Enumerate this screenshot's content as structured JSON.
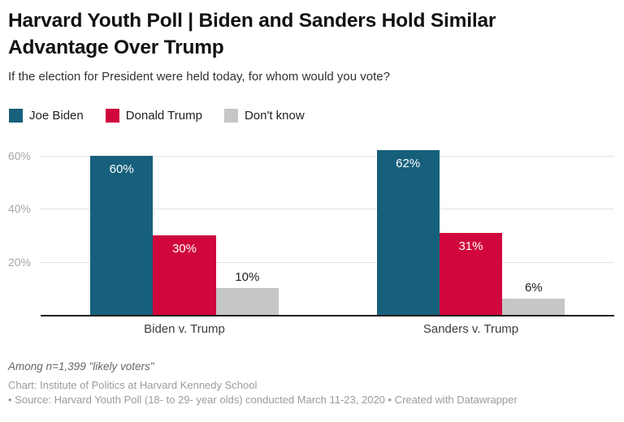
{
  "header": {
    "title": "Harvard Youth Poll | Biden and Sanders Hold Similar Advantage Over Trump",
    "subtitle": "If the election for President were held today, for whom would you vote?"
  },
  "chart_data": {
    "type": "bar",
    "categories": [
      "Biden v. Trump",
      "Sanders v. Trump"
    ],
    "series": [
      {
        "name": "Joe Biden",
        "color": "#17607c",
        "values": [
          60,
          62
        ]
      },
      {
        "name": "Donald Trump",
        "color": "#d0063d",
        "values": [
          30,
          31
        ]
      },
      {
        "name": "Don't know",
        "color": "#c6c6c6",
        "values": [
          10,
          6
        ]
      }
    ],
    "value_suffix": "%",
    "y_ticks": [
      20,
      40,
      60
    ],
    "ylim": [
      0,
      65
    ],
    "grid": true,
    "legend_position": "top",
    "title": "Harvard Youth Poll | Biden and Sanders Hold Similar Advantage Over Trump",
    "xlabel": "",
    "ylabel": ""
  },
  "colors": {
    "biden": "#17607c",
    "trump": "#d0063d",
    "dont_know": "#c6c6c6",
    "gridline": "#e3e3e3",
    "axis_baseline": "#1f1f1f",
    "tick_text": "#a6a6a6"
  },
  "footer": {
    "note": "Among n=1,399 \"likely voters\"",
    "credit_line1": "Chart: Institute of Politics at Harvard Kennedy School",
    "credit_line2": "• Source: Harvard Youth Poll (18- to 29- year olds) conducted March 11-23, 2020 • Created with Datawrapper"
  }
}
